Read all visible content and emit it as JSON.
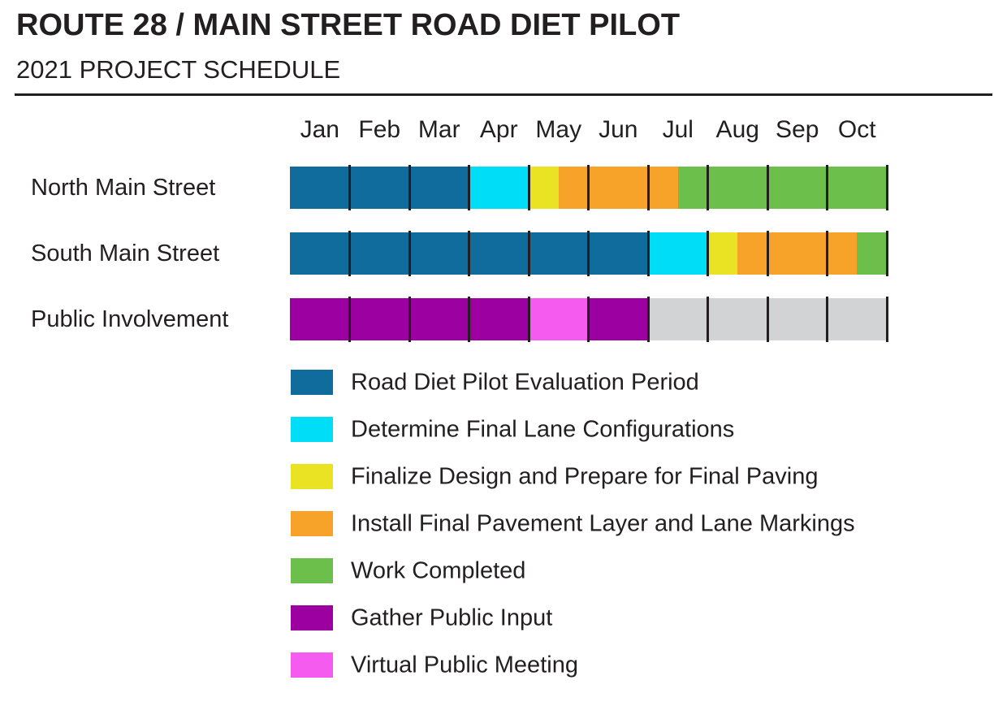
{
  "header": {
    "title": "ROUTE 28 / MAIN STREET ROAD DIET PILOT",
    "subtitle": "2021 PROJECT SCHEDULE"
  },
  "colors": {
    "evaluation": "#0f6c9d",
    "determine": "#00ddf7",
    "finalize": "#e9e323",
    "install": "#f7a229",
    "completed": "#6cbf4a",
    "gather": "#9c00a0",
    "virtual": "#f55bef",
    "future": "#d1d3d4",
    "tick": "#231f20",
    "text": "#231f20"
  },
  "chart_data": {
    "type": "gantt",
    "title": "ROUTE 28 / MAIN STREET ROAD DIET PILOT",
    "subtitle": "2021 PROJECT SCHEDULE",
    "months": [
      "Jan",
      "Feb",
      "Mar",
      "Apr",
      "May",
      "Jun",
      "Jul",
      "Aug",
      "Sep",
      "Oct"
    ],
    "units_note": "segment start/end measured in months, 0 = start of Jan, 10 = end of Oct",
    "rows": [
      {
        "label": "North Main Street",
        "segments": [
          {
            "activity": "Road Diet Pilot Evaluation Period",
            "color_key": "evaluation",
            "start": 0,
            "end": 3
          },
          {
            "activity": "Determine Final Lane Configurations",
            "color_key": "determine",
            "start": 3,
            "end": 4
          },
          {
            "activity": "Finalize Design and Prepare for Final Paving",
            "color_key": "finalize",
            "start": 4,
            "end": 4.5
          },
          {
            "activity": "Install Final Pavement Layer and Lane Markings",
            "color_key": "install",
            "start": 4.5,
            "end": 6.5
          },
          {
            "activity": "Work Completed",
            "color_key": "completed",
            "start": 6.5,
            "end": 10
          }
        ]
      },
      {
        "label": "South Main Street",
        "segments": [
          {
            "activity": "Road Diet Pilot Evaluation Period",
            "color_key": "evaluation",
            "start": 0,
            "end": 6
          },
          {
            "activity": "Determine Final Lane Configurations",
            "color_key": "determine",
            "start": 6,
            "end": 7
          },
          {
            "activity": "Finalize Design and Prepare for Final Paving",
            "color_key": "finalize",
            "start": 7,
            "end": 7.5
          },
          {
            "activity": "Install Final Pavement Layer and Lane Markings",
            "color_key": "install",
            "start": 7.5,
            "end": 9.5
          },
          {
            "activity": "Work Completed",
            "color_key": "completed",
            "start": 9.5,
            "end": 10
          }
        ]
      },
      {
        "label": "Public Involvement",
        "segments": [
          {
            "activity": "Gather Public Input",
            "color_key": "gather",
            "start": 0,
            "end": 4
          },
          {
            "activity": "Virtual Public Meeting",
            "color_key": "virtual",
            "start": 4,
            "end": 5
          },
          {
            "activity": "Gather Public Input",
            "color_key": "gather",
            "start": 5,
            "end": 6
          },
          {
            "activity": null,
            "color_key": "future",
            "start": 6,
            "end": 10
          }
        ]
      }
    ],
    "legend": [
      {
        "color_key": "evaluation",
        "label": "Road Diet Pilot Evaluation Period"
      },
      {
        "color_key": "determine",
        "label": "Determine Final Lane Configurations"
      },
      {
        "color_key": "finalize",
        "label": "Finalize Design and Prepare for Final Paving"
      },
      {
        "color_key": "install",
        "label": "Install Final Pavement Layer and Lane Markings"
      },
      {
        "color_key": "completed",
        "label": "Work Completed"
      },
      {
        "color_key": "gather",
        "label": "Gather Public Input"
      },
      {
        "color_key": "virtual",
        "label": "Virtual Public Meeting"
      }
    ],
    "legend_position": "bottom-left under chart"
  }
}
